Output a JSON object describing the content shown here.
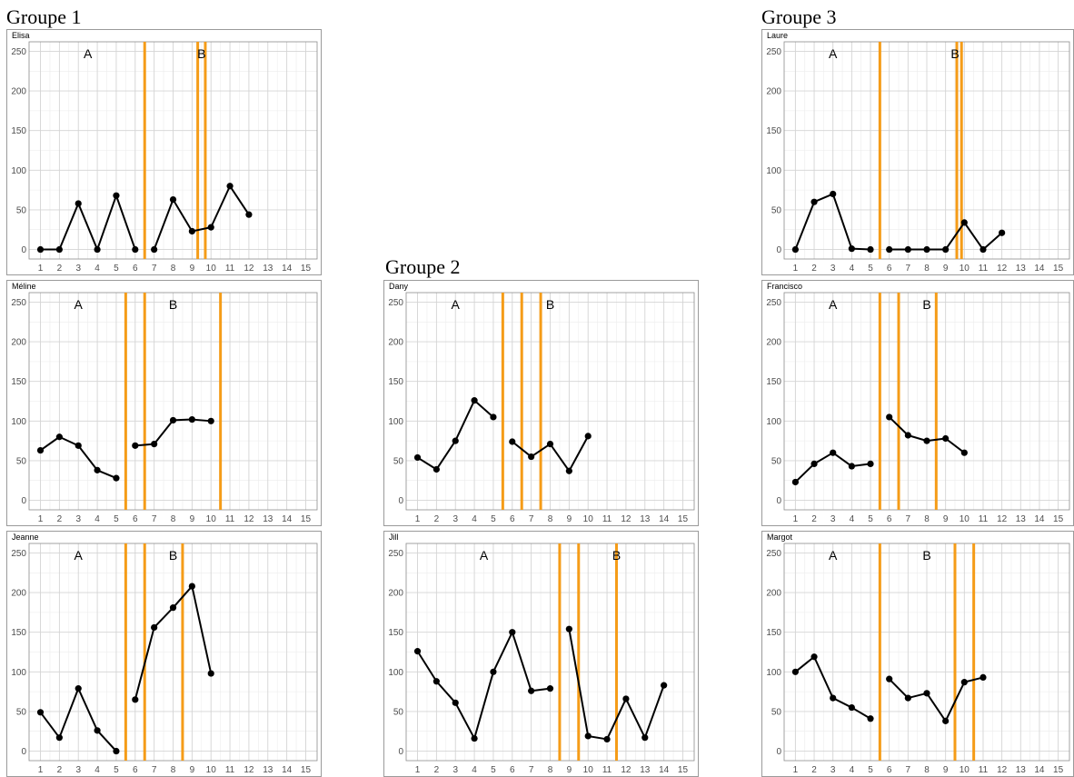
{
  "groups": [
    {
      "title": "Groupe 1"
    },
    {
      "title": "Groupe 2"
    },
    {
      "title": "Groupe 3"
    }
  ],
  "chart_data": [
    {
      "type": "line",
      "group": "Groupe 1",
      "title": "Elisa",
      "xlim": [
        1,
        15
      ],
      "ylim": [
        0,
        250
      ],
      "xticks": [
        1,
        2,
        3,
        4,
        5,
        6,
        7,
        8,
        9,
        10,
        11,
        12,
        13,
        14,
        15
      ],
      "yticks": [
        0,
        50,
        100,
        150,
        200,
        250
      ],
      "grid": true,
      "phase_labels": [
        {
          "text": "A",
          "x": 3.5
        },
        {
          "text": "B",
          "x": 9.5
        }
      ],
      "phase_lines_x": [
        6.5,
        9.3,
        9.7
      ],
      "segments": [
        [
          [
            1,
            0
          ],
          [
            2,
            0
          ],
          [
            3,
            58
          ],
          [
            4,
            0
          ],
          [
            5,
            68
          ],
          [
            6,
            0
          ]
        ],
        [
          [
            7,
            0
          ],
          [
            8,
            63
          ],
          [
            9,
            23
          ],
          [
            10,
            28
          ],
          [
            11,
            80
          ],
          [
            12,
            44
          ]
        ]
      ]
    },
    {
      "type": "line",
      "group": "Groupe 1",
      "title": "Méline",
      "xlim": [
        1,
        15
      ],
      "ylim": [
        0,
        250
      ],
      "xticks": [
        1,
        2,
        3,
        4,
        5,
        6,
        7,
        8,
        9,
        10,
        11,
        12,
        13,
        14,
        15
      ],
      "yticks": [
        0,
        50,
        100,
        150,
        200,
        250
      ],
      "grid": true,
      "phase_labels": [
        {
          "text": "A",
          "x": 3
        },
        {
          "text": "B",
          "x": 8
        }
      ],
      "phase_lines_x": [
        5.5,
        6.5,
        10.5
      ],
      "segments": [
        [
          [
            1,
            63
          ],
          [
            2,
            80
          ],
          [
            3,
            69
          ],
          [
            4,
            38
          ],
          [
            5,
            28
          ]
        ],
        [
          [
            6,
            69
          ],
          [
            7,
            71
          ],
          [
            8,
            101
          ],
          [
            9,
            102
          ],
          [
            10,
            100
          ]
        ]
      ]
    },
    {
      "type": "line",
      "group": "Groupe 1",
      "title": "Jeanne",
      "xlim": [
        1,
        15
      ],
      "ylim": [
        0,
        250
      ],
      "xticks": [
        1,
        2,
        3,
        4,
        5,
        6,
        7,
        8,
        9,
        10,
        11,
        12,
        13,
        14,
        15
      ],
      "yticks": [
        0,
        50,
        100,
        150,
        200,
        250
      ],
      "grid": true,
      "phase_labels": [
        {
          "text": "A",
          "x": 3
        },
        {
          "text": "B",
          "x": 8
        }
      ],
      "phase_lines_x": [
        5.5,
        6.5,
        8.5
      ],
      "segments": [
        [
          [
            1,
            49
          ],
          [
            2,
            17
          ],
          [
            3,
            79
          ],
          [
            4,
            26
          ],
          [
            5,
            0
          ]
        ],
        [
          [
            6,
            65
          ],
          [
            7,
            156
          ],
          [
            8,
            181
          ],
          [
            9,
            208
          ],
          [
            10,
            98
          ]
        ]
      ]
    },
    {
      "type": "line",
      "group": "Groupe 2",
      "title": "Dany",
      "xlim": [
        1,
        15
      ],
      "ylim": [
        0,
        250
      ],
      "xticks": [
        1,
        2,
        3,
        4,
        5,
        6,
        7,
        8,
        9,
        10,
        11,
        12,
        13,
        14,
        15
      ],
      "yticks": [
        0,
        50,
        100,
        150,
        200,
        250
      ],
      "grid": true,
      "phase_labels": [
        {
          "text": "A",
          "x": 3
        },
        {
          "text": "B",
          "x": 8
        }
      ],
      "phase_lines_x": [
        5.5,
        6.5,
        7.5
      ],
      "segments": [
        [
          [
            1,
            54
          ],
          [
            2,
            39
          ],
          [
            3,
            75
          ],
          [
            4,
            126
          ],
          [
            5,
            105
          ]
        ],
        [
          [
            6,
            74
          ],
          [
            7,
            55
          ],
          [
            8,
            71
          ],
          [
            9,
            37
          ],
          [
            10,
            81
          ]
        ]
      ]
    },
    {
      "type": "line",
      "group": "Groupe 2",
      "title": "Jill",
      "xlim": [
        1,
        15
      ],
      "ylim": [
        0,
        250
      ],
      "xticks": [
        1,
        2,
        3,
        4,
        5,
        6,
        7,
        8,
        9,
        10,
        11,
        12,
        13,
        14,
        15
      ],
      "yticks": [
        0,
        50,
        100,
        150,
        200,
        250
      ],
      "grid": true,
      "phase_labels": [
        {
          "text": "A",
          "x": 4.5
        },
        {
          "text": "B",
          "x": 11.5
        }
      ],
      "phase_lines_x": [
        8.5,
        9.5,
        11.5
      ],
      "segments": [
        [
          [
            1,
            126
          ],
          [
            2,
            88
          ],
          [
            3,
            61
          ],
          [
            4,
            16
          ],
          [
            5,
            100
          ],
          [
            6,
            150
          ],
          [
            7,
            76
          ],
          [
            8,
            79
          ]
        ],
        [
          [
            9,
            154
          ],
          [
            10,
            19
          ],
          [
            11,
            15
          ],
          [
            12,
            66
          ],
          [
            13,
            17
          ],
          [
            14,
            83
          ]
        ]
      ]
    },
    {
      "type": "line",
      "group": "Groupe 3",
      "title": "Laure",
      "xlim": [
        1,
        15
      ],
      "ylim": [
        0,
        250
      ],
      "xticks": [
        1,
        2,
        3,
        4,
        5,
        6,
        7,
        8,
        9,
        10,
        11,
        12,
        13,
        14,
        15
      ],
      "yticks": [
        0,
        50,
        100,
        150,
        200,
        250
      ],
      "grid": true,
      "phase_labels": [
        {
          "text": "A",
          "x": 3
        },
        {
          "text": "B",
          "x": 9.5
        }
      ],
      "phase_lines_x": [
        5.5,
        9.6,
        9.85
      ],
      "segments": [
        [
          [
            1,
            0
          ],
          [
            2,
            60
          ],
          [
            3,
            70
          ],
          [
            4,
            1
          ],
          [
            5,
            0
          ]
        ],
        [
          [
            6,
            0
          ],
          [
            7,
            0
          ],
          [
            8,
            0
          ],
          [
            9,
            0
          ],
          [
            10,
            34
          ],
          [
            11,
            0
          ],
          [
            12,
            21
          ]
        ]
      ]
    },
    {
      "type": "line",
      "group": "Groupe 3",
      "title": "Francisco",
      "xlim": [
        1,
        15
      ],
      "ylim": [
        0,
        250
      ],
      "xticks": [
        1,
        2,
        3,
        4,
        5,
        6,
        7,
        8,
        9,
        10,
        11,
        12,
        13,
        14,
        15
      ],
      "yticks": [
        0,
        50,
        100,
        150,
        200,
        250
      ],
      "grid": true,
      "phase_labels": [
        {
          "text": "A",
          "x": 3
        },
        {
          "text": "B",
          "x": 8
        }
      ],
      "phase_lines_x": [
        5.5,
        6.5,
        8.5
      ],
      "segments": [
        [
          [
            1,
            23
          ],
          [
            2,
            46
          ],
          [
            3,
            60
          ],
          [
            4,
            43
          ],
          [
            5,
            46
          ]
        ],
        [
          [
            6,
            105
          ],
          [
            7,
            82
          ],
          [
            8,
            75
          ],
          [
            9,
            78
          ],
          [
            10,
            60
          ]
        ]
      ]
    },
    {
      "type": "line",
      "group": "Groupe 3",
      "title": "Margot",
      "xlim": [
        1,
        15
      ],
      "ylim": [
        0,
        250
      ],
      "xticks": [
        1,
        2,
        3,
        4,
        5,
        6,
        7,
        8,
        9,
        10,
        11,
        12,
        13,
        14,
        15
      ],
      "yticks": [
        0,
        50,
        100,
        150,
        200,
        250
      ],
      "grid": true,
      "phase_labels": [
        {
          "text": "A",
          "x": 3
        },
        {
          "text": "B",
          "x": 8
        }
      ],
      "phase_lines_x": [
        5.5,
        9.5,
        10.5
      ],
      "segments": [
        [
          [
            1,
            100
          ],
          [
            2,
            119
          ],
          [
            3,
            67
          ],
          [
            4,
            55
          ],
          [
            5,
            41
          ]
        ],
        [
          [
            6,
            91
          ],
          [
            7,
            67
          ],
          [
            8,
            73
          ],
          [
            9,
            38
          ],
          [
            10,
            87
          ],
          [
            11,
            93
          ]
        ]
      ]
    }
  ]
}
